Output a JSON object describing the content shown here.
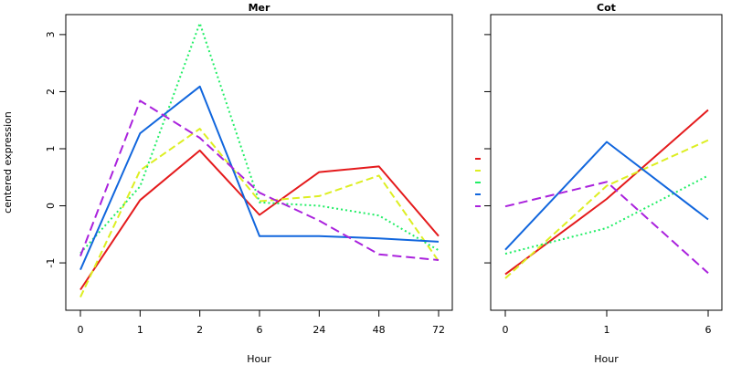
{
  "chart_data": [
    {
      "type": "line",
      "title": "Mer",
      "xlabel": "Hour",
      "ylabel": "centered expression",
      "categories": [
        "0",
        "1",
        "2",
        "6",
        "24",
        "48",
        "72"
      ],
      "ylim": [
        -1.83,
        3.35
      ],
      "yticks": [
        -1,
        0,
        1,
        2,
        3
      ],
      "series": [
        {
          "color": "#e41a1c",
          "dash": "solid",
          "values": [
            -1.47,
            0.1,
            0.97,
            -0.16,
            0.59,
            0.69,
            -0.53
          ]
        },
        {
          "color": "#ddee22",
          "dash": "dashed",
          "values": [
            -1.6,
            0.62,
            1.35,
            0.08,
            0.17,
            0.53,
            -0.97
          ]
        },
        {
          "color": "#22ee66",
          "dash": "dotted",
          "values": [
            -0.83,
            0.34,
            3.2,
            0.06,
            0.0,
            -0.17,
            -0.78
          ]
        },
        {
          "color": "#1166dd",
          "dash": "solid",
          "values": [
            -1.12,
            1.27,
            2.09,
            -0.53,
            -0.53,
            -0.57,
            -0.63
          ]
        },
        {
          "color": "#aa22dd",
          "dash": "longdash",
          "values": [
            -0.88,
            1.84,
            1.19,
            0.23,
            -0.26,
            -0.85,
            -0.95
          ]
        }
      ]
    },
    {
      "type": "line",
      "title": "Cot",
      "xlabel": "Hour",
      "ylabel": "",
      "categories": [
        "0",
        "1",
        "6"
      ],
      "ylim": [
        -1.83,
        3.35
      ],
      "series": [
        {
          "color": "#e41a1c",
          "dash": "solid",
          "values": [
            -1.2,
            0.12,
            1.68
          ]
        },
        {
          "color": "#ddee22",
          "dash": "dashed",
          "values": [
            -1.27,
            0.35,
            1.15
          ]
        },
        {
          "color": "#22ee66",
          "dash": "dotted",
          "values": [
            -0.84,
            -0.39,
            0.53
          ]
        },
        {
          "color": "#1166dd",
          "dash": "solid",
          "values": [
            -0.77,
            1.12,
            -0.24
          ]
        },
        {
          "color": "#aa22dd",
          "dash": "longdash",
          "values": [
            -0.01,
            0.42,
            -1.18
          ]
        }
      ]
    }
  ]
}
